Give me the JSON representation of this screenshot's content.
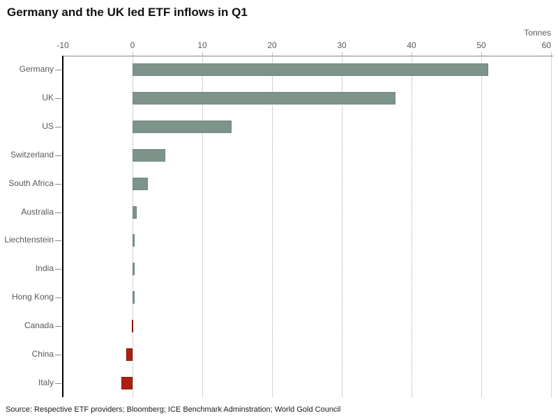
{
  "title": "Germany and the UK led ETF inflows in Q1",
  "source": "Source: Respective ETF providers; Bloomberg; ICE Benchmark Adminstration; World Gold Council",
  "chart_data": {
    "type": "bar",
    "orientation": "horizontal",
    "title": "Germany and the UK led ETF inflows in Q1",
    "unit": "Tonnes",
    "categories": [
      "Germany",
      "UK",
      "US",
      "Switzerland",
      "South Africa",
      "Australia",
      "Liechtenstein",
      "India",
      "Hong Kong",
      "Canada",
      "China",
      "Italy"
    ],
    "values": [
      51,
      37.7,
      14.2,
      4.7,
      2.2,
      0.6,
      0.3,
      0.3,
      0.3,
      -0.1,
      -0.9,
      -1.6
    ],
    "xlim": [
      -10,
      60
    ],
    "xticks": [
      -10,
      0,
      10,
      20,
      30,
      40,
      50,
      60
    ],
    "xlabel": "Tonnes",
    "ylabel": "",
    "axis_position": "top",
    "grid": "vertical-dotted",
    "legend": "none",
    "positive_color": "#7d948a",
    "positive_border_color": "#6f877c",
    "negative_color": "#b01f12",
    "negative_border_color": "#87170c"
  }
}
